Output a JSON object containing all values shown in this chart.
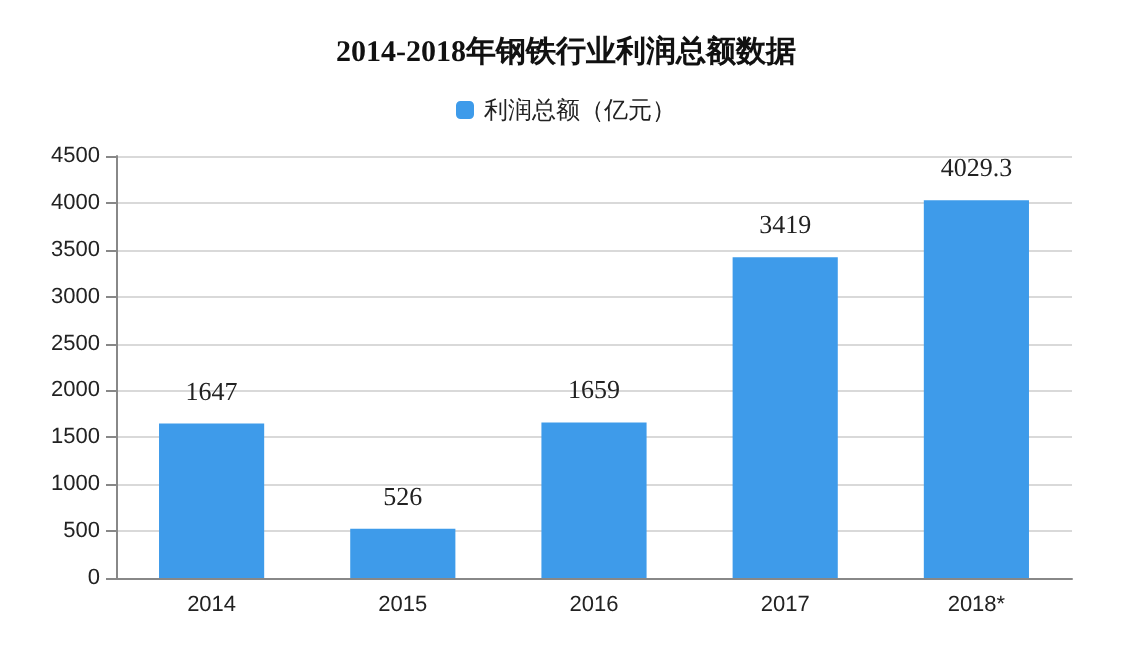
{
  "chart_data": {
    "type": "bar",
    "title": "2014-2018年钢铁行业利润总额数据",
    "categories": [
      "2014",
      "2015",
      "2016",
      "2017",
      "2018*"
    ],
    "series": [
      {
        "name": "利润总额（亿元）",
        "color": "#3e9bea",
        "values": [
          1647,
          526,
          1659,
          3419,
          4029.3
        ]
      }
    ],
    "ylim": [
      0,
      4500
    ],
    "yticks": [
      0,
      500,
      1000,
      1500,
      2000,
      2500,
      3000,
      3500,
      4000,
      4500
    ],
    "grid": "y",
    "legend": "top",
    "data_labels": true
  }
}
